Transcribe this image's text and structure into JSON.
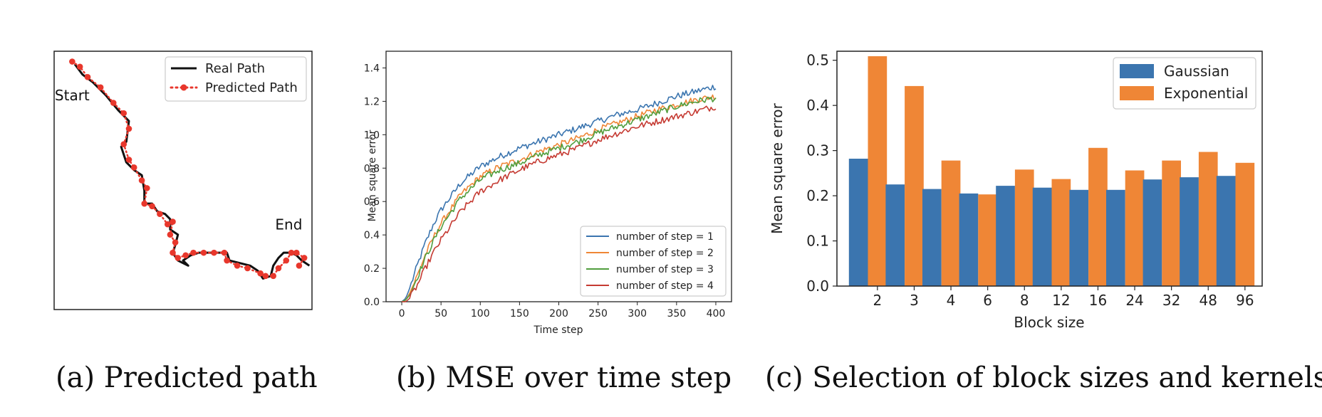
{
  "captions": {
    "a": "(a) Predicted path",
    "b": "(b) MSE over time step",
    "c": "(c) Selection of block sizes and kernels"
  },
  "chart_data": [
    {
      "type": "line",
      "panel": "a",
      "title": "",
      "xlabel": "",
      "ylabel": "",
      "axes_ticks": false,
      "xlim": [
        0,
        100
      ],
      "ylim": [
        0,
        100
      ],
      "annotations": [
        {
          "text": "Start",
          "x": 7,
          "y": 81
        },
        {
          "text": "End",
          "x": 91,
          "y": 31
        }
      ],
      "legend": {
        "position": "top-right",
        "entries": [
          "Real Path",
          "Predicted Path"
        ]
      },
      "series": [
        {
          "name": "Real Path",
          "style": "solid",
          "color": "#111111",
          "points": [
            [
              8,
              95
            ],
            [
              11,
              91
            ],
            [
              15,
              88
            ],
            [
              20,
              83
            ],
            [
              25,
              77
            ],
            [
              29,
              73
            ],
            [
              28,
              65
            ],
            [
              26,
              63
            ],
            [
              28,
              57
            ],
            [
              31,
              54
            ],
            [
              34,
              52
            ],
            [
              35,
              46
            ],
            [
              35,
              41
            ],
            [
              38,
              41
            ],
            [
              40,
              38
            ],
            [
              43,
              37
            ],
            [
              45,
              35
            ],
            [
              45,
              31
            ],
            [
              48,
              29
            ],
            [
              47,
              25
            ],
            [
              46,
              22
            ],
            [
              48,
              19
            ],
            [
              52,
              17
            ],
            [
              50,
              19
            ],
            [
              53,
              21
            ],
            [
              56,
              22
            ],
            [
              60,
              22
            ],
            [
              64,
              22
            ],
            [
              67,
              22
            ],
            [
              68,
              19
            ],
            [
              72,
              18
            ],
            [
              76,
              17
            ],
            [
              79,
              15
            ],
            [
              81,
              12
            ],
            [
              84,
              13
            ],
            [
              85,
              17
            ],
            [
              87,
              20
            ],
            [
              89,
              22
            ],
            [
              92,
              22
            ],
            [
              94,
              21
            ],
            [
              96,
              19
            ],
            [
              99,
              17
            ]
          ]
        },
        {
          "name": "Predicted Path",
          "style": "dotted",
          "color": "#e8372c",
          "points": [
            [
              7,
              96
            ],
            [
              10,
              94
            ],
            [
              13,
              90
            ],
            [
              18,
              86
            ],
            [
              23,
              80
            ],
            [
              27,
              76
            ],
            [
              29,
              70
            ],
            [
              27,
              64
            ],
            [
              29,
              58
            ],
            [
              31,
              55
            ],
            [
              34,
              50
            ],
            [
              36,
              47
            ],
            [
              35,
              41
            ],
            [
              38,
              40
            ],
            [
              41,
              37
            ],
            [
              44,
              33
            ],
            [
              46,
              34
            ],
            [
              45,
              29
            ],
            [
              47,
              26
            ],
            [
              46,
              22
            ],
            [
              48,
              20
            ],
            [
              51,
              21
            ],
            [
              54,
              22
            ],
            [
              58,
              22
            ],
            [
              62,
              22
            ],
            [
              66,
              22
            ],
            [
              67,
              19
            ],
            [
              71,
              17
            ],
            [
              75,
              16
            ],
            [
              80,
              14
            ],
            [
              82,
              13
            ],
            [
              85,
              13
            ],
            [
              87,
              16
            ],
            [
              90,
              19
            ],
            [
              92,
              22
            ],
            [
              94,
              22
            ],
            [
              97,
              20
            ],
            [
              95,
              17
            ]
          ]
        }
      ]
    },
    {
      "type": "line",
      "panel": "b",
      "title": "",
      "xlabel": "Time step",
      "ylabel": "Mean square error",
      "xlim": [
        -20,
        420
      ],
      "ylim": [
        0,
        1.5
      ],
      "xticks": [
        0,
        50,
        100,
        150,
        200,
        250,
        300,
        350,
        400
      ],
      "yticks": [
        0.0,
        0.2,
        0.4,
        0.6,
        0.8,
        1.0,
        1.2,
        1.4
      ],
      "legend": {
        "position": "lower-right"
      },
      "noise_amplitude": 0.02,
      "series": [
        {
          "name": "number of step = 1",
          "color": "#3b75af",
          "x": [
            0,
            5,
            10,
            20,
            30,
            40,
            50,
            75,
            100,
            125,
            150,
            175,
            200,
            225,
            250,
            275,
            300,
            325,
            350,
            375,
            400
          ],
          "values": [
            0.0,
            0.02,
            0.08,
            0.22,
            0.35,
            0.46,
            0.55,
            0.71,
            0.81,
            0.87,
            0.92,
            0.96,
            1.0,
            1.04,
            1.08,
            1.12,
            1.15,
            1.19,
            1.23,
            1.26,
            1.29
          ]
        },
        {
          "name": "number of step = 2",
          "color": "#ef8636",
          "x": [
            0,
            5,
            10,
            20,
            30,
            40,
            50,
            75,
            100,
            125,
            150,
            175,
            200,
            225,
            250,
            275,
            300,
            325,
            350,
            375,
            400
          ],
          "values": [
            0.0,
            0.01,
            0.05,
            0.16,
            0.28,
            0.38,
            0.47,
            0.64,
            0.75,
            0.81,
            0.85,
            0.9,
            0.94,
            0.98,
            1.03,
            1.07,
            1.11,
            1.15,
            1.18,
            1.21,
            1.23
          ]
        },
        {
          "name": "number of step = 3",
          "color": "#519e3e",
          "x": [
            0,
            5,
            10,
            20,
            30,
            40,
            50,
            75,
            100,
            125,
            150,
            175,
            200,
            225,
            250,
            275,
            300,
            325,
            350,
            375,
            400
          ],
          "values": [
            0.0,
            0.01,
            0.04,
            0.15,
            0.26,
            0.36,
            0.45,
            0.62,
            0.73,
            0.79,
            0.83,
            0.88,
            0.92,
            0.96,
            1.01,
            1.05,
            1.09,
            1.13,
            1.17,
            1.2,
            1.22
          ]
        },
        {
          "name": "number of step = 4",
          "color": "#c53a32",
          "x": [
            0,
            5,
            10,
            20,
            30,
            40,
            50,
            75,
            100,
            125,
            150,
            175,
            200,
            225,
            250,
            275,
            300,
            325,
            350,
            375,
            400
          ],
          "values": [
            0.0,
            0.0,
            0.02,
            0.1,
            0.2,
            0.29,
            0.37,
            0.54,
            0.66,
            0.73,
            0.79,
            0.84,
            0.88,
            0.92,
            0.97,
            1.01,
            1.05,
            1.08,
            1.11,
            1.14,
            1.17
          ]
        }
      ]
    },
    {
      "type": "bar",
      "panel": "c",
      "title": "",
      "xlabel": "Block size",
      "ylabel": "Mean square error",
      "ylim": [
        0,
        0.52
      ],
      "yticks": [
        0.0,
        0.1,
        0.2,
        0.3,
        0.4,
        0.5
      ],
      "categories": [
        "2",
        "3",
        "4",
        "6",
        "8",
        "12",
        "16",
        "24",
        "32",
        "48",
        "96"
      ],
      "legend": {
        "position": "top-right"
      },
      "series": [
        {
          "name": "Gaussian",
          "color": "#3b75af",
          "values": [
            0.282,
            0.225,
            0.215,
            0.205,
            0.222,
            0.218,
            0.213,
            0.213,
            0.236,
            0.241,
            0.244
          ]
        },
        {
          "name": "Exponential",
          "color": "#ef8636",
          "values": [
            0.509,
            0.443,
            0.278,
            0.203,
            0.258,
            0.237,
            0.306,
            0.256,
            0.278,
            0.297,
            0.273
          ]
        }
      ]
    }
  ]
}
